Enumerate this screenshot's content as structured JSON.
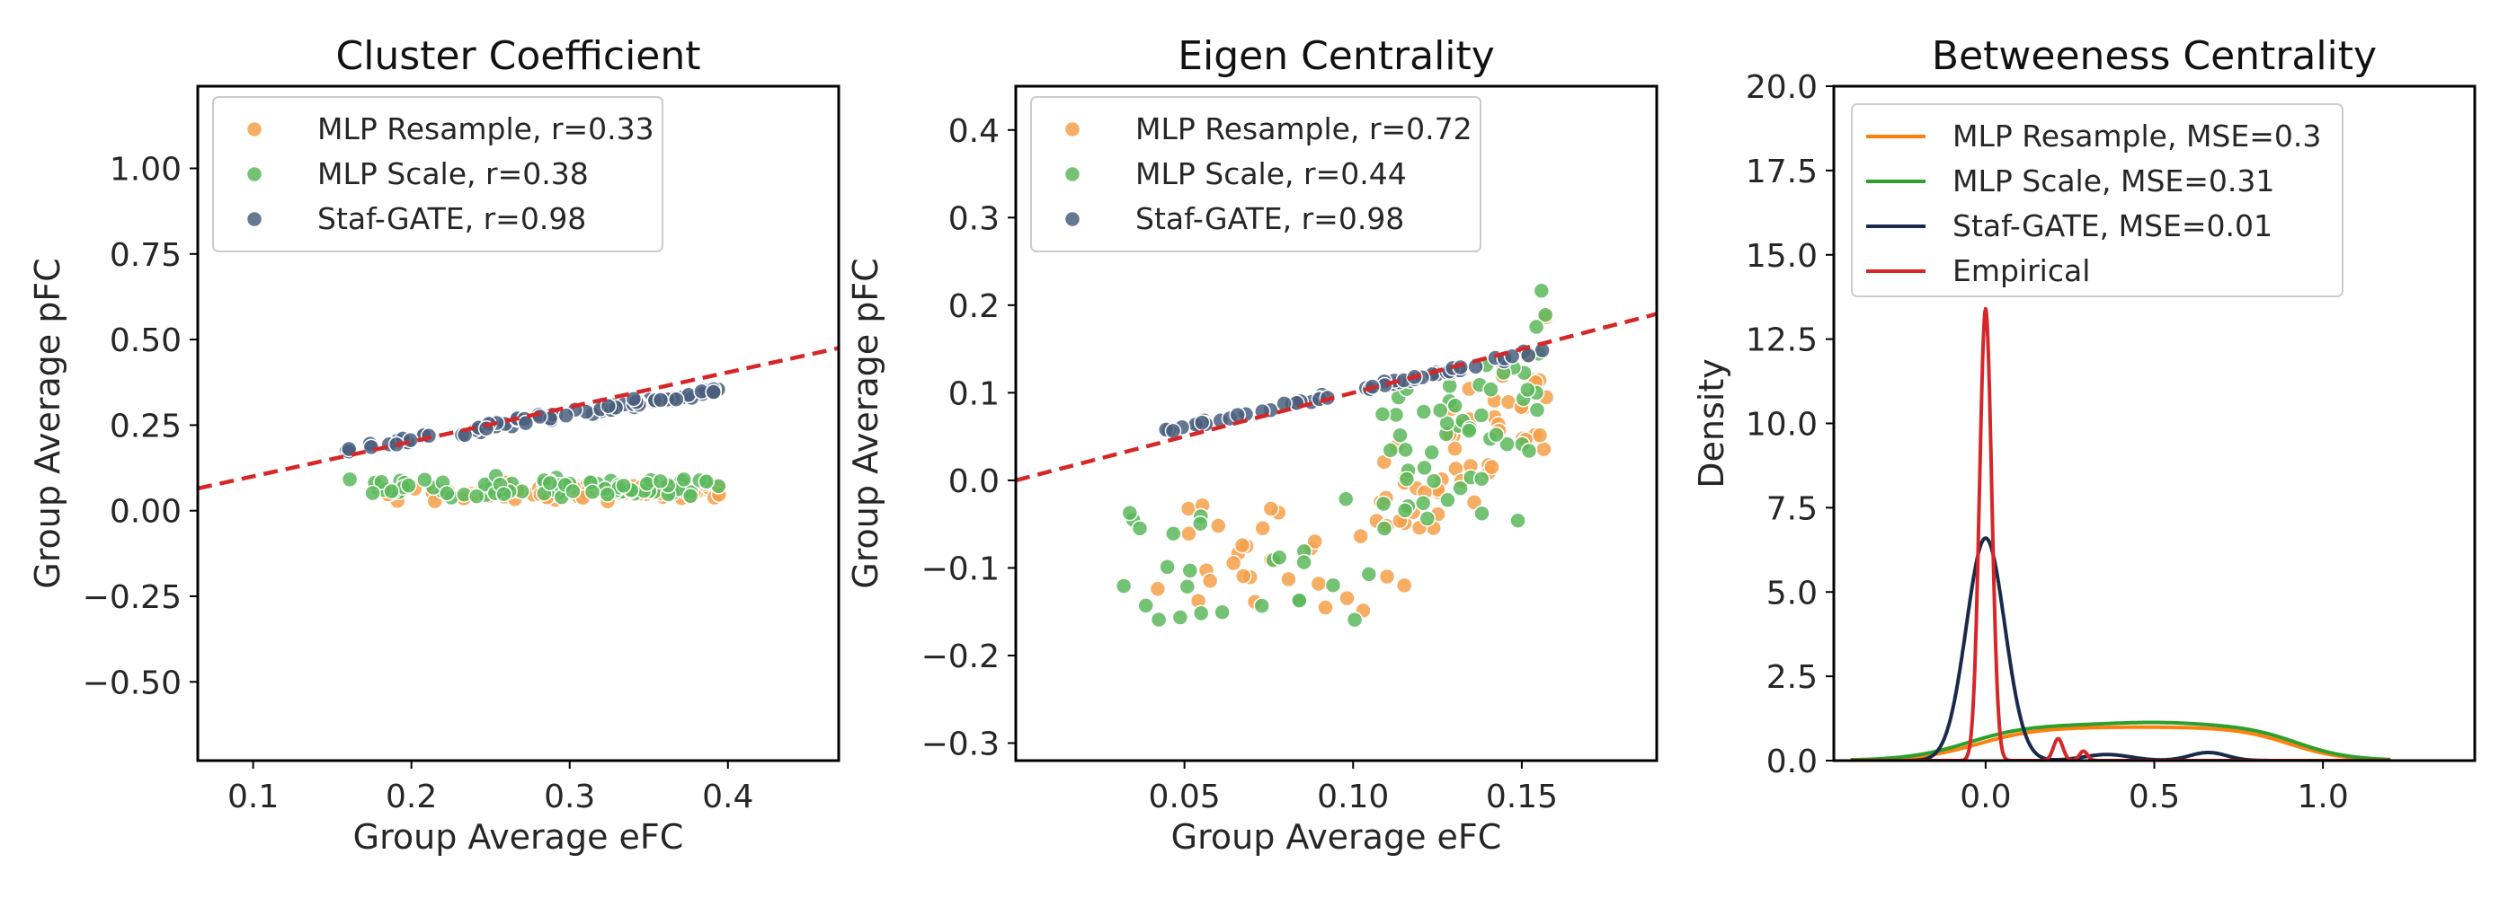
{
  "chart_data": [
    {
      "type": "scatter",
      "title": "Cluster Coefficient",
      "xlabel": "Group Average eFC",
      "ylabel": "Group Average pFC",
      "xlim": [
        0.065,
        0.47
      ],
      "ylim": [
        -0.73,
        1.24
      ],
      "xticks": [
        0.1,
        0.2,
        0.3,
        0.4
      ],
      "xtick_labels": [
        "0.1",
        "0.2",
        "0.3",
        "0.4"
      ],
      "yticks": [
        -0.5,
        -0.25,
        0.0,
        0.25,
        0.5,
        0.75,
        1.0
      ],
      "ytick_labels": [
        "−0.50",
        "−0.25",
        "0.00",
        "0.25",
        "0.50",
        "0.75",
        "1.00"
      ],
      "fit_line": {
        "x": [
          0.065,
          0.47
        ],
        "y": [
          0.065,
          0.475
        ],
        "color": "#d62728"
      },
      "series": [
        {
          "name": "MLP Resample, r=0.33",
          "color": "#f5a04a",
          "seed": 11,
          "gen": "cc_resample"
        },
        {
          "name": "MLP Scale, r=0.38",
          "color": "#5cb85c",
          "seed": 23,
          "gen": "cc_scale"
        },
        {
          "name": "Staf-GATE, r=0.98",
          "color": "#4a5f7e",
          "seed": 37,
          "gen": "cc_staf"
        }
      ]
    },
    {
      "type": "scatter",
      "title": "Eigen Centrality",
      "xlabel": "Group Average eFC",
      "ylabel": "Group Average pFC",
      "xlim": [
        0.0,
        0.19
      ],
      "ylim": [
        -0.32,
        0.45
      ],
      "xticks": [
        0.05,
        0.1,
        0.15
      ],
      "xtick_labels": [
        "0.05",
        "0.10",
        "0.15"
      ],
      "yticks": [
        -0.3,
        -0.2,
        -0.1,
        0.0,
        0.1,
        0.2,
        0.3,
        0.4
      ],
      "ytick_labels": [
        "−0.3",
        "−0.2",
        "−0.1",
        "0.0",
        "0.1",
        "0.2",
        "0.3",
        "0.4"
      ],
      "fit_line": {
        "x": [
          0.0,
          0.19
        ],
        "y": [
          0.0,
          0.19
        ],
        "color": "#d62728"
      },
      "series": [
        {
          "name": "MLP Resample, r=0.72",
          "color": "#f5a04a",
          "seed": 51,
          "gen": "ec_resample"
        },
        {
          "name": "MLP Scale, r=0.44",
          "color": "#5cb85c",
          "seed": 67,
          "gen": "ec_scale"
        },
        {
          "name": "Staf-GATE, r=0.98",
          "color": "#4a5f7e",
          "seed": 79,
          "gen": "ec_staf"
        }
      ]
    },
    {
      "type": "line",
      "title": "Betweeness Centrality",
      "xlabel": "",
      "ylabel": "Density",
      "xlim": [
        -0.45,
        1.45
      ],
      "ylim": [
        0,
        20
      ],
      "xticks": [
        0.0,
        0.5,
        1.0
      ],
      "xtick_labels": [
        "0.0",
        "0.5",
        "1.0"
      ],
      "yticks": [
        0,
        2.5,
        5,
        7.5,
        10,
        12.5,
        15,
        17.5,
        20
      ],
      "ytick_labels": [
        "0.0",
        "2.5",
        "5.0",
        "7.5",
        "10.0",
        "12.5",
        "15.0",
        "17.5",
        "20.0"
      ],
      "series": [
        {
          "name": "MLP Resample, MSE=0.3",
          "color": "#ff7f0e",
          "gen": "bc_resample"
        },
        {
          "name": "MLP Scale, MSE=0.31",
          "color": "#2ca02c",
          "gen": "bc_scale"
        },
        {
          "name": "Staf-GATE, MSE=0.01",
          "color": "#1a2a4a",
          "gen": "bc_staf"
        },
        {
          "name": "Empirical",
          "color": "#d62728",
          "gen": "bc_emp"
        }
      ]
    }
  ]
}
